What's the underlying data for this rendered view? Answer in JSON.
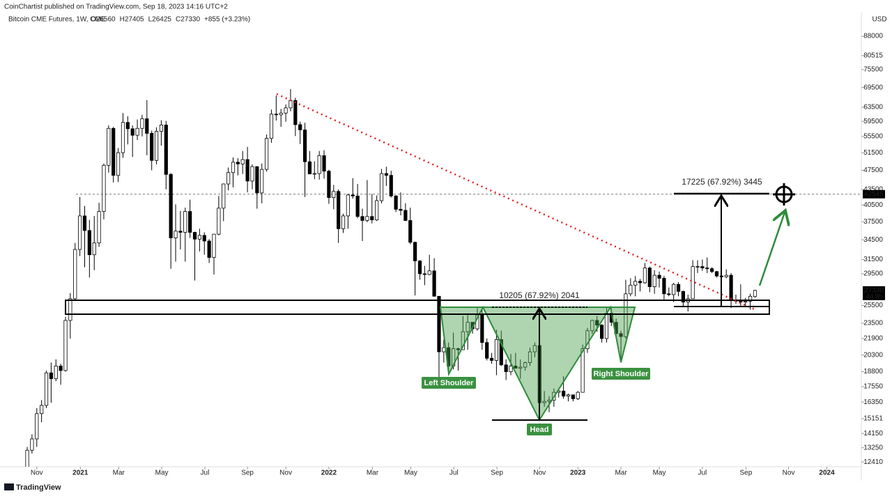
{
  "chart_data": {
    "type": "candlestick",
    "publisher": "CoinChartist published on TradingView.com, Sep 18, 2023 14:16 UTC+2",
    "title": "Bitcoin CME Futures, 1W, CME",
    "ohlc_legend": [
      "O26560",
      "H27405",
      "L26425",
      "C27330",
      "+855 (+3.23%)"
    ],
    "currency": "USD",
    "brand": "TradingView",
    "log_scale": true,
    "up_color": "#ffffff",
    "down_color": "#000000",
    "border_color": "#000000",
    "ylim": [
      12140,
      98150
    ],
    "yticks": [
      12410,
      13250,
      14150,
      15151,
      16350,
      17550,
      18800,
      20300,
      21900,
      23500,
      25500,
      29500,
      31500,
      34500,
      37500,
      40500,
      43500,
      47500,
      51500,
      55500,
      59500,
      63500,
      69500,
      75500,
      80515,
      88000
    ],
    "xlim": [
      -5.68,
      174.2
    ],
    "xticks": [
      {
        "value": 2.0,
        "label": "Nov"
      },
      {
        "value": 11.1,
        "label": "2021"
      },
      {
        "value": 19.1,
        "label": "Mar"
      },
      {
        "value": 28.1,
        "label": "May"
      },
      {
        "value": 37.1,
        "label": "Jul"
      },
      {
        "value": 46.0,
        "label": "Sep"
      },
      {
        "value": 54.0,
        "label": "Nov"
      },
      {
        "value": 63.0,
        "label": "2022"
      },
      {
        "value": 72.1,
        "label": "Mar"
      },
      {
        "value": 80.1,
        "label": "May"
      },
      {
        "value": 89.1,
        "label": "Jul"
      },
      {
        "value": 98.1,
        "label": "Sep"
      },
      {
        "value": 107.0,
        "label": "Nov"
      },
      {
        "value": 115.0,
        "label": "2023"
      },
      {
        "value": 124.0,
        "label": "Mar"
      },
      {
        "value": 132.0,
        "label": "May"
      },
      {
        "value": 141.0,
        "label": "Jul"
      },
      {
        "value": 150.1,
        "label": "Sep"
      },
      {
        "value": 159.0,
        "label": "Nov"
      },
      {
        "value": 167.0,
        "label": "2024"
      }
    ],
    "price_lines": [
      42545,
      27330
    ],
    "countdown": "4d 9h",
    "annotations": {
      "target_measure": "17225 (67.92%) 3445",
      "pattern_measure": "10205 (67.92%) 2041",
      "left_shoulder": "Left Shoulder",
      "head": "Head",
      "right_shoulder": "Right Shoulder"
    },
    "candles": [
      [
        12000,
        13300,
        11900,
        13100
      ],
      [
        13100,
        14100,
        12900,
        13800
      ],
      [
        13800,
        15900,
        13300,
        15500
      ],
      [
        15500,
        16500,
        14900,
        16100
      ],
      [
        16100,
        18900,
        15900,
        18700
      ],
      [
        18700,
        19600,
        16300,
        18200
      ],
      [
        18200,
        19900,
        18000,
        19300
      ],
      [
        19300,
        19500,
        17700,
        18900
      ],
      [
        18900,
        24200,
        18800,
        23800
      ],
      [
        23800,
        27000,
        21900,
        26300
      ],
      [
        26300,
        34000,
        26100,
        33000
      ],
      [
        33000,
        42000,
        32000,
        38500
      ],
      [
        38500,
        40300,
        30400,
        36000
      ],
      [
        36000,
        37800,
        29000,
        32200
      ],
      [
        32200,
        38500,
        30000,
        34000
      ],
      [
        34000,
        40900,
        33400,
        39300
      ],
      [
        39300,
        49000,
        37900,
        48600
      ],
      [
        48600,
        58400,
        47000,
        57600
      ],
      [
        57600,
        58000,
        44900,
        46400
      ],
      [
        46400,
        52600,
        45000,
        51500
      ],
      [
        51500,
        61800,
        50300,
        59200
      ],
      [
        59200,
        60900,
        53500,
        57500
      ],
      [
        57500,
        58400,
        50500,
        55800
      ],
      [
        55800,
        60000,
        54600,
        57600
      ],
      [
        57600,
        61300,
        55500,
        60200
      ],
      [
        60200,
        65600,
        50900,
        56300
      ],
      [
        56300,
        57000,
        47500,
        49700
      ],
      [
        49700,
        57900,
        48800,
        56800
      ],
      [
        56800,
        59800,
        53200,
        58500
      ],
      [
        58500,
        59600,
        43500,
        46600
      ],
      [
        46600,
        46900,
        30200,
        34800
      ],
      [
        34800,
        40600,
        31200,
        35900
      ],
      [
        35900,
        39400,
        33000,
        35700
      ],
      [
        35700,
        40000,
        31200,
        39300
      ],
      [
        39300,
        41500,
        34800,
        35700
      ],
      [
        35700,
        35800,
        28600,
        34600
      ],
      [
        34600,
        36300,
        32700,
        35200
      ],
      [
        35200,
        35700,
        32200,
        34300
      ],
      [
        34300,
        34600,
        31000,
        31800
      ],
      [
        31800,
        35400,
        29400,
        35400
      ],
      [
        35400,
        42200,
        35200,
        39900
      ],
      [
        39900,
        44700,
        37600,
        44600
      ],
      [
        44600,
        48100,
        43300,
        47000
      ],
      [
        47000,
        50400,
        43900,
        49300
      ],
      [
        49300,
        50200,
        46400,
        48900
      ],
      [
        48900,
        51900,
        46700,
        49900
      ],
      [
        49900,
        52900,
        42900,
        45200
      ],
      [
        45200,
        48800,
        43500,
        48300
      ],
      [
        48300,
        48400,
        39800,
        42800
      ],
      [
        42800,
        49000,
        40800,
        47700
      ],
      [
        47700,
        56000,
        47200,
        55000
      ],
      [
        55000,
        62800,
        53900,
        61500
      ],
      [
        61500,
        67000,
        59700,
        61300
      ],
      [
        61300,
        63000,
        58000,
        61800
      ],
      [
        61800,
        64300,
        59400,
        63300
      ],
      [
        63300,
        69000,
        62300,
        65500
      ],
      [
        65500,
        66300,
        55600,
        58600
      ],
      [
        58600,
        59400,
        53600,
        57200
      ],
      [
        57200,
        59100,
        42000,
        49400
      ],
      [
        49400,
        51900,
        46800,
        46700
      ],
      [
        46700,
        49500,
        45600,
        46800
      ],
      [
        46800,
        51900,
        45500,
        50800
      ],
      [
        50800,
        52100,
        45700,
        47300
      ],
      [
        47300,
        47600,
        40700,
        41900
      ],
      [
        41900,
        44400,
        39700,
        43100
      ],
      [
        43100,
        43500,
        34000,
        36300
      ],
      [
        36300,
        38900,
        35600,
        38500
      ],
      [
        38500,
        42600,
        36300,
        42400
      ],
      [
        42400,
        45800,
        41700,
        42200
      ],
      [
        42200,
        44600,
        38100,
        38400
      ],
      [
        38400,
        39800,
        34300,
        37700
      ],
      [
        37700,
        45400,
        37400,
        38400
      ],
      [
        38400,
        42600,
        37200,
        37800
      ],
      [
        37800,
        42300,
        37600,
        41300
      ],
      [
        41300,
        47800,
        40800,
        46800
      ],
      [
        46800,
        48300,
        44200,
        46400
      ],
      [
        46400,
        47400,
        41900,
        42200
      ],
      [
        42200,
        42400,
        39200,
        39700
      ],
      [
        39700,
        42900,
        38600,
        39500
      ],
      [
        39500,
        40800,
        37600,
        37700
      ],
      [
        37700,
        40000,
        33800,
        34100
      ],
      [
        34100,
        34200,
        26700,
        31300
      ],
      [
        31300,
        31400,
        28700,
        29500
      ],
      [
        29500,
        30600,
        28000,
        29400
      ],
      [
        29400,
        32200,
        29300,
        29900
      ],
      [
        29900,
        31700,
        26600,
        26600
      ],
      [
        26600,
        26600,
        17600,
        20600
      ],
      [
        20600,
        21800,
        19600,
        21000
      ],
      [
        21000,
        21500,
        18800,
        19300
      ],
      [
        19300,
        22500,
        19000,
        20900
      ],
      [
        20900,
        21000,
        18900,
        20800
      ],
      [
        20800,
        24300,
        20800,
        22600
      ],
      [
        22600,
        24600,
        20800,
        23600
      ],
      [
        23600,
        23600,
        22400,
        22900
      ],
      [
        22900,
        25200,
        22700,
        24400
      ],
      [
        24400,
        25000,
        20800,
        21500
      ],
      [
        21500,
        21900,
        19800,
        20000
      ],
      [
        20000,
        20500,
        19500,
        19800
      ],
      [
        19800,
        22800,
        18500,
        21800
      ],
      [
        21800,
        22700,
        19300,
        19400
      ],
      [
        19400,
        19900,
        18100,
        18800
      ],
      [
        18800,
        20400,
        18500,
        19300
      ],
      [
        19300,
        20500,
        19100,
        19100
      ],
      [
        19100,
        19900,
        18200,
        19200
      ],
      [
        19200,
        19700,
        18900,
        19600
      ],
      [
        19600,
        21000,
        19300,
        20600
      ],
      [
        20600,
        21500,
        20100,
        21200
      ],
      [
        21200,
        21500,
        15500,
        16300
      ],
      [
        16300,
        17200,
        16000,
        16400
      ],
      [
        16400,
        16800,
        15600,
        16500
      ],
      [
        16500,
        17400,
        16000,
        17100
      ],
      [
        17100,
        17400,
        16700,
        17200
      ],
      [
        17200,
        18400,
        16600,
        16800
      ],
      [
        16800,
        17000,
        16400,
        16900
      ],
      [
        16900,
        16900,
        16400,
        16600
      ],
      [
        16600,
        17200,
        16500,
        17100
      ],
      [
        17100,
        21300,
        17100,
        20900
      ],
      [
        20900,
        23000,
        20500,
        22700
      ],
      [
        22700,
        23900,
        22400,
        23800
      ],
      [
        23800,
        24300,
        22600,
        23300
      ],
      [
        23300,
        23400,
        21500,
        21900
      ],
      [
        21900,
        25200,
        21500,
        24600
      ],
      [
        24600,
        25200,
        23200,
        23600
      ],
      [
        23600,
        24000,
        22000,
        22400
      ],
      [
        22400,
        22700,
        19600,
        22100
      ],
      [
        22100,
        28700,
        21900,
        26900
      ],
      [
        26900,
        28900,
        26600,
        28000
      ],
      [
        28000,
        29200,
        26600,
        28500
      ],
      [
        28500,
        28800,
        27200,
        28300
      ],
      [
        28300,
        31000,
        28200,
        30300
      ],
      [
        30300,
        30500,
        27100,
        27800
      ],
      [
        27800,
        30000,
        26900,
        29300
      ],
      [
        29300,
        29800,
        27700,
        28900
      ],
      [
        28900,
        29200,
        26200,
        26900
      ],
      [
        26900,
        27700,
        26600,
        26800
      ],
      [
        26800,
        28300,
        25900,
        28100
      ],
      [
        28100,
        28400,
        26600,
        27200
      ],
      [
        27200,
        27300,
        25400,
        25900
      ],
      [
        25900,
        26800,
        24800,
        26300
      ],
      [
        26300,
        31400,
        26300,
        30500
      ],
      [
        30500,
        31400,
        29600,
        30500
      ],
      [
        30500,
        31500,
        29900,
        30300
      ],
      [
        30300,
        31800,
        29600,
        30200
      ],
      [
        30200,
        30400,
        29600,
        29800
      ],
      [
        29800,
        29900,
        29000,
        29200
      ],
      [
        29200,
        29800,
        28600,
        29100
      ],
      [
        29100,
        30100,
        28900,
        29300
      ],
      [
        29300,
        29600,
        25200,
        26100
      ],
      [
        26100,
        26800,
        25700,
        26000
      ],
      [
        26000,
        28100,
        25300,
        25900
      ],
      [
        25900,
        26400,
        25400,
        26000
      ],
      [
        26000,
        26900,
        25000,
        26600
      ],
      [
        26560,
        27405,
        26425,
        27330
      ]
    ]
  }
}
